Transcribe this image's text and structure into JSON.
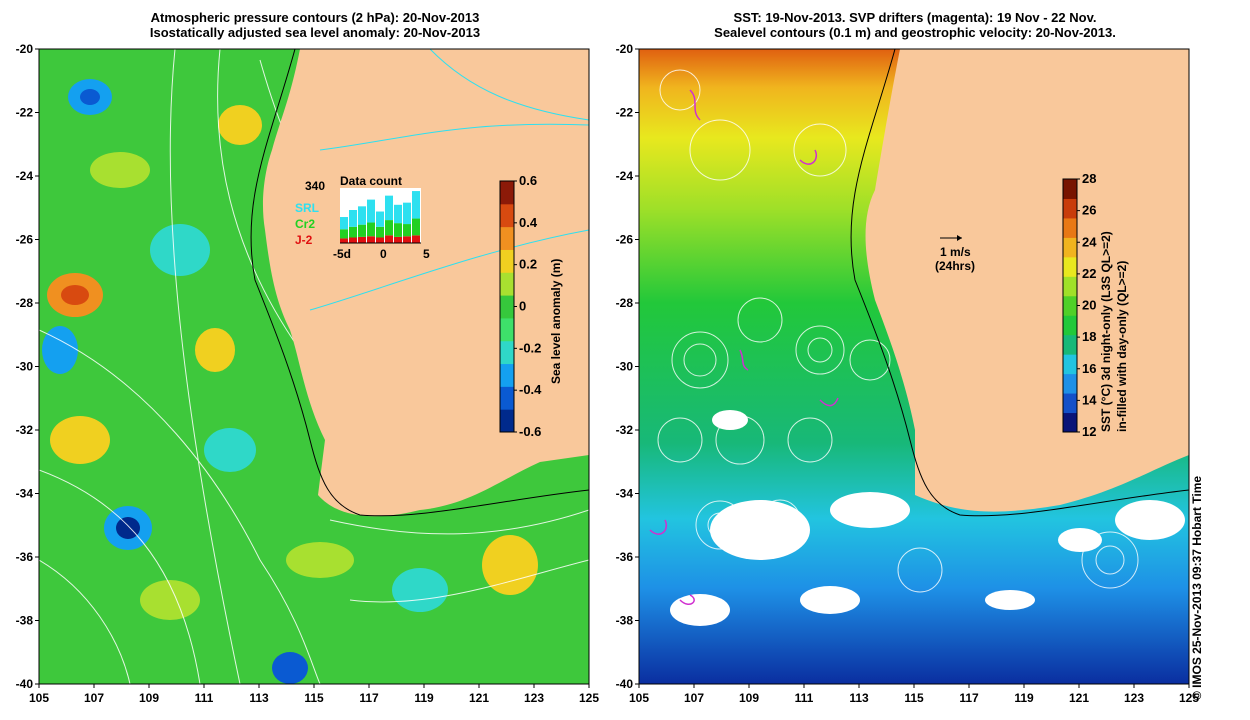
{
  "left_panel": {
    "title_line1": "Atmospheric pressure contours (2 hPa): 20-Nov-2013",
    "title_line2": "Isostatically adjusted sea level anomaly: 20-Nov-2013",
    "colorbar": {
      "label": "Sea level anomaly (m)",
      "ticks": [
        "0.6",
        "0.4",
        "0.2",
        "0",
        "-0.2",
        "-0.4",
        "-0.6"
      ],
      "colors": [
        "#002a8c",
        "#0a5ad2",
        "#14a0f0",
        "#2fd8c8",
        "#3ee06a",
        "#36c83c",
        "#a8e030",
        "#f0d020",
        "#f09020",
        "#d84a10",
        "#8c1a08"
      ]
    },
    "inset": {
      "title": "Data count",
      "count": "340",
      "series": [
        {
          "name": "SRL",
          "color": "#2ee0f0",
          "values": [
            40,
            55,
            60,
            75,
            50,
            80,
            60,
            70,
            90
          ]
        },
        {
          "name": "Cr2",
          "color": "#22d022",
          "values": [
            30,
            35,
            40,
            45,
            35,
            50,
            45,
            40,
            55
          ]
        },
        {
          "name": "J-2",
          "color": "#e01010",
          "values": [
            15,
            18,
            20,
            22,
            18,
            25,
            20,
            22,
            25
          ]
        }
      ],
      "xticks": [
        "-5d",
        "0",
        "5"
      ]
    }
  },
  "right_panel": {
    "title_line1": "SST: 19-Nov-2013. SVP drifters (magenta): 19 Nov - 22 Nov.",
    "title_line2": "Sealevel contours (0.1 m) and geostrophic velocity: 20-Nov-2013.",
    "scale_arrow_label1": "1 m/s",
    "scale_arrow_label2": "(24hrs)",
    "colorbar": {
      "label_line1": "SST (°C)  3d night-only (L3S QL>=2)",
      "label_line2": "in-filled with day-only (QL>=2)",
      "ticks": [
        "28",
        "26",
        "24",
        "22",
        "20",
        "18",
        "16",
        "14",
        "12"
      ],
      "colors": [
        "#0a1478",
        "#1450c8",
        "#1e90e6",
        "#22c4e0",
        "#18b878",
        "#22c83a",
        "#50d028",
        "#a0e028",
        "#e8e81e",
        "#f0b41e",
        "#e87814",
        "#c83c0a",
        "#781400"
      ]
    }
  },
  "axes": {
    "yticks": [
      "-20",
      "-22",
      "-24",
      "-26",
      "-28",
      "-30",
      "-32",
      "-34",
      "-36",
      "-38",
      "-40"
    ],
    "xticks": [
      "105",
      "107",
      "109",
      "111",
      "113",
      "115",
      "117",
      "119",
      "121",
      "123",
      "125"
    ]
  },
  "colors": {
    "land": "#f9c89b",
    "ocean_left": "#3ec83c",
    "ocean_right": "#1eb060"
  },
  "copyright": "© IMOS 25-Nov-2013 09:37 Hobart Time"
}
